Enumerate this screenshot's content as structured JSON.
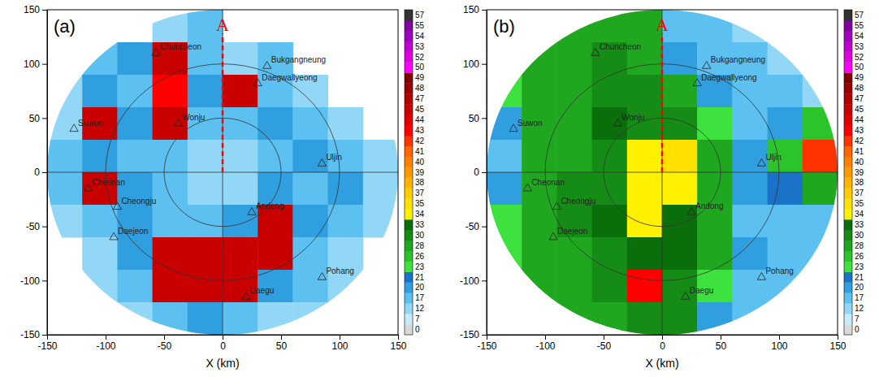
{
  "chart_data": [
    {
      "type": "heatmap",
      "panel_label": "(a)",
      "x_label": "X (km)",
      "xlim": [
        -150,
        150
      ],
      "ylim": [
        -150,
        150
      ],
      "xticks": [
        -150,
        -100,
        -50,
        0,
        50,
        100,
        150
      ],
      "yticks": [
        -150,
        -100,
        -50,
        0,
        50,
        100,
        150
      ],
      "range_rings": [
        50,
        100
      ],
      "cells": {
        "x": [
          -135,
          -105,
          -75,
          -45,
          -15,
          15,
          45,
          75,
          105,
          135
        ],
        "y": [
          135,
          105,
          75,
          45,
          15,
          -15,
          -45,
          -75,
          -105,
          -135
        ],
        "values": [
          [
            null,
            null,
            null,
            12,
            17,
            null,
            null,
            null,
            null,
            null
          ],
          [
            null,
            17,
            20,
            45,
            17,
            12,
            17,
            null,
            null,
            null
          ],
          [
            12,
            20,
            17,
            43,
            20,
            45,
            17,
            12,
            null,
            null
          ],
          [
            12,
            45,
            20,
            45,
            17,
            17,
            20,
            17,
            12,
            null
          ],
          [
            17,
            20,
            17,
            17,
            12,
            12,
            17,
            20,
            17,
            12
          ],
          [
            17,
            45,
            20,
            17,
            12,
            12,
            20,
            17,
            20,
            12
          ],
          [
            12,
            17,
            20,
            17,
            17,
            20,
            45,
            20,
            17,
            12
          ],
          [
            null,
            12,
            20,
            45,
            45,
            45,
            45,
            17,
            12,
            null
          ],
          [
            null,
            12,
            17,
            45,
            45,
            45,
            20,
            17,
            12,
            null
          ],
          [
            null,
            null,
            12,
            17,
            20,
            17,
            12,
            12,
            null,
            null
          ]
        ]
      },
      "stations": [
        {
          "name": "Chuncheon",
          "x": -57,
          "y": 110
        },
        {
          "name": "Bukgangneung",
          "x": 38,
          "y": 98
        },
        {
          "name": "Daegwallyeong",
          "x": 30,
          "y": 82
        },
        {
          "name": "Suwon",
          "x": -127,
          "y": 40
        },
        {
          "name": "Wonju",
          "x": -38,
          "y": 45
        },
        {
          "name": "Uljin",
          "x": 85,
          "y": 8
        },
        {
          "name": "Cheonan",
          "x": -115,
          "y": -15
        },
        {
          "name": "Cheongju",
          "x": -90,
          "y": -32
        },
        {
          "name": "Daejeon",
          "x": -93,
          "y": -60
        },
        {
          "name": "Andong",
          "x": 25,
          "y": -37
        },
        {
          "name": "Pohang",
          "x": 85,
          "y": -97
        },
        {
          "name": "Daegu",
          "x": 20,
          "y": -115
        }
      ],
      "annotation": {
        "text": "A",
        "x": 0,
        "y": [
          0,
          128
        ],
        "color": "#ff0000"
      },
      "colorbar": {
        "ticks": [
          0,
          7,
          12,
          17,
          20,
          21,
          23,
          26,
          28,
          30,
          33,
          34,
          35,
          37,
          38,
          39,
          40,
          41,
          42,
          43,
          44,
          45,
          47,
          48,
          49,
          50,
          52,
          53,
          54,
          55,
          57
        ],
        "colors": [
          "#d9d9d9",
          "#c6ecfc",
          "#93d7f7",
          "#5cc0f1",
          "#2f9fe0",
          "#1a73c8",
          "#3ee23e",
          "#2bc52b",
          "#1fa81f",
          "#158c15",
          "#0a6e0a",
          "#fff100",
          "#ffe000",
          "#ffcc00",
          "#ffb400",
          "#ff9900",
          "#ff8000",
          "#ff6600",
          "#ff3300",
          "#ff0000",
          "#e00000",
          "#c80000",
          "#b00000",
          "#980000",
          "#800000",
          "#ff00ff",
          "#e000e0",
          "#c000d0",
          "#a000c0",
          "#8000a0",
          "#333333"
        ]
      }
    },
    {
      "type": "heatmap",
      "panel_label": "(b)",
      "x_label": "X (km)",
      "xlim": [
        -150,
        150
      ],
      "ylim": [
        -150,
        150
      ],
      "xticks": [
        -150,
        -100,
        -50,
        0,
        50,
        100,
        150
      ],
      "yticks": [
        -150,
        -100,
        -50,
        0,
        50,
        100,
        150
      ],
      "range_rings": [
        50,
        100
      ],
      "cells": {
        "x": [
          -135,
          -105,
          -75,
          -45,
          -15,
          15,
          45,
          75,
          105,
          135
        ],
        "y": [
          135,
          105,
          75,
          45,
          15,
          -15,
          -45,
          -75,
          -105,
          -135
        ],
        "values": [
          [
            null,
            26,
            28,
            28,
            28,
            17,
            17,
            12,
            12,
            null
          ],
          [
            26,
            28,
            28,
            30,
            28,
            20,
            17,
            17,
            12,
            12
          ],
          [
            23,
            28,
            28,
            30,
            30,
            28,
            20,
            17,
            17,
            12
          ],
          [
            20,
            28,
            28,
            33,
            30,
            30,
            23,
            17,
            20,
            26
          ],
          [
            17,
            28,
            28,
            30,
            34,
            35,
            28,
            20,
            26,
            42
          ],
          [
            20,
            28,
            30,
            30,
            34,
            34,
            28,
            20,
            21,
            28
          ],
          [
            23,
            28,
            30,
            33,
            34,
            33,
            28,
            17,
            17,
            17
          ],
          [
            23,
            28,
            28,
            30,
            33,
            33,
            28,
            20,
            17,
            17
          ],
          [
            26,
            28,
            28,
            30,
            43,
            30,
            23,
            17,
            17,
            12
          ],
          [
            null,
            28,
            28,
            28,
            30,
            30,
            20,
            17,
            12,
            null
          ]
        ]
      },
      "stations": [
        {
          "name": "Chuncheon",
          "x": -57,
          "y": 110
        },
        {
          "name": "Bukgangneung",
          "x": 38,
          "y": 98
        },
        {
          "name": "Daegwallyeong",
          "x": 30,
          "y": 82
        },
        {
          "name": "Suwon",
          "x": -127,
          "y": 40
        },
        {
          "name": "Wonju",
          "x": -38,
          "y": 45
        },
        {
          "name": "Uljin",
          "x": 85,
          "y": 8
        },
        {
          "name": "Cheonan",
          "x": -115,
          "y": -15
        },
        {
          "name": "Cheongju",
          "x": -90,
          "y": -32
        },
        {
          "name": "Daejeon",
          "x": -93,
          "y": -60
        },
        {
          "name": "Andong",
          "x": 25,
          "y": -37
        },
        {
          "name": "Pohang",
          "x": 85,
          "y": -97
        },
        {
          "name": "Daegu",
          "x": 20,
          "y": -115
        }
      ],
      "annotation": {
        "text": "A",
        "x": 0,
        "y": [
          0,
          128
        ],
        "color": "#ff0000"
      },
      "colorbar": {
        "ticks": [
          0,
          7,
          12,
          17,
          20,
          21,
          23,
          26,
          28,
          30,
          33,
          34,
          35,
          37,
          38,
          39,
          40,
          41,
          42,
          43,
          44,
          45,
          47,
          48,
          49,
          50,
          52,
          53,
          54,
          55,
          57
        ],
        "colors": [
          "#d9d9d9",
          "#c6ecfc",
          "#93d7f7",
          "#5cc0f1",
          "#2f9fe0",
          "#1a73c8",
          "#3ee23e",
          "#2bc52b",
          "#1fa81f",
          "#158c15",
          "#0a6e0a",
          "#fff100",
          "#ffe000",
          "#ffcc00",
          "#ffb400",
          "#ff9900",
          "#ff8000",
          "#ff6600",
          "#ff3300",
          "#ff0000",
          "#e00000",
          "#c80000",
          "#b00000",
          "#980000",
          "#800000",
          "#ff00ff",
          "#e000e0",
          "#c000d0",
          "#a000c0",
          "#8000a0",
          "#333333"
        ]
      }
    }
  ]
}
